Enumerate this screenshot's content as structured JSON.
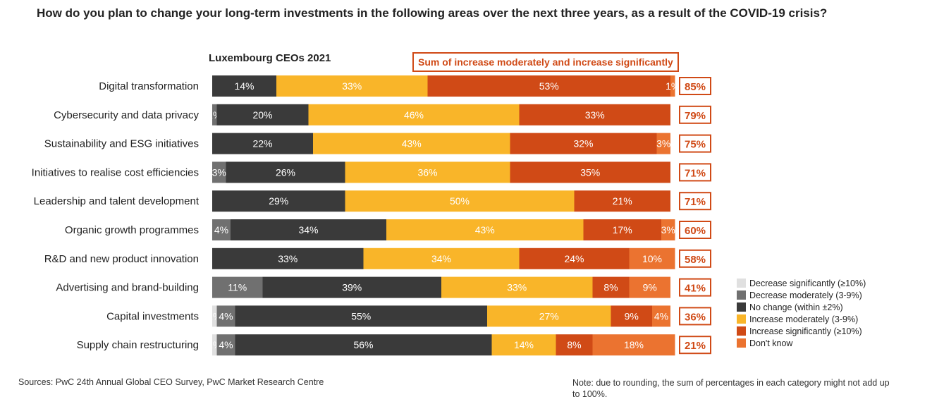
{
  "page": {
    "title": "How do you plan to change your long-term investments in the following areas over the next three years, as a result of the COVID-19 crisis?",
    "subtitle": "Luxembourg CEOs 2021",
    "sum_header": "Sum of increase moderately and increase significantly",
    "sources": "Sources: PwC 24th Annual Global CEO Survey, PwC Market Research Centre",
    "note": "Note: due to rounding, the sum of percentages in each category might not add up to 100%."
  },
  "chart_data": {
    "type": "bar",
    "orientation": "horizontal",
    "stacked": true,
    "title": "How do you plan to change your long-term investments in the following areas over the next three years, as a result of the COVID-19 crisis?",
    "subtitle": "Luxembourg CEOs 2021",
    "categories": [
      "Digital transformation",
      "Cybersecurity and data privacy",
      "Sustainability and ESG initiatives",
      "Initiatives to realise cost efficiencies",
      "Leadership and talent development",
      "Organic growth programmes",
      "R&D and new product innovation",
      "Advertising and brand-building",
      "Capital investments",
      "Supply chain restructuring"
    ],
    "series": [
      {
        "name": "Decrease significantly (≥10%)",
        "color": "#e0e0e0",
        "values": [
          0,
          0,
          0,
          0,
          0,
          0,
          0,
          0,
          1,
          1
        ]
      },
      {
        "name": "Decrease moderately (3-9%)",
        "color": "#707070",
        "values": [
          0,
          1,
          0,
          3,
          0,
          4,
          0,
          11,
          4,
          4
        ]
      },
      {
        "name": "No change (within ±2%)",
        "color": "#3a3a3a",
        "values": [
          14,
          20,
          22,
          26,
          29,
          34,
          33,
          39,
          55,
          56
        ]
      },
      {
        "name": "Increase moderately (3-9%)",
        "color": "#f9b529",
        "values": [
          33,
          46,
          43,
          36,
          50,
          43,
          34,
          33,
          27,
          14
        ]
      },
      {
        "name": "Increase significantly (≥10%)",
        "color": "#d04a16",
        "values": [
          53,
          33,
          32,
          35,
          21,
          17,
          24,
          8,
          9,
          8
        ]
      },
      {
        "name": "Don't know",
        "color": "#eb7330",
        "values": [
          1,
          0,
          3,
          0,
          0,
          3,
          10,
          9,
          4,
          18
        ]
      }
    ],
    "sum_labels": [
      "85%",
      "79%",
      "75%",
      "71%",
      "71%",
      "60%",
      "58%",
      "41%",
      "36%",
      "21%"
    ],
    "sum_color": "#d04a16",
    "value_format": "{v}%",
    "xlim": [
      0,
      100
    ],
    "grid": false,
    "legend_position": "bottom-right"
  }
}
